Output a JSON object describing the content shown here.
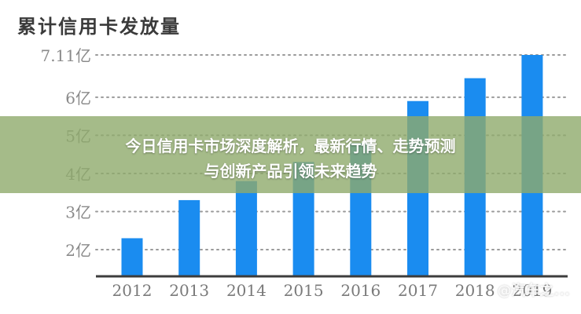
{
  "chart_data": {
    "type": "bar",
    "title": "累计信用卡发放量",
    "categories": [
      "2012",
      "2013",
      "2014",
      "2015",
      "2016",
      "2017",
      "2018",
      "2019"
    ],
    "values": [
      2.3,
      3.3,
      3.8,
      4.3,
      4.8,
      5.9,
      6.5,
      7.11
    ],
    "ytick_labels": [
      "7.11亿",
      "6亿",
      "5亿",
      "4亿",
      "3亿",
      "2亿"
    ],
    "yticks": [
      7.11,
      6,
      5,
      4,
      3,
      2
    ],
    "ylim": [
      1.3,
      7.11
    ],
    "bar_color": "#1a8cf0",
    "grid": "dotted horizontal",
    "xlabel": "",
    "ylabel": ""
  },
  "banner": {
    "line1": "今日信用卡市场深度解析，最新行情、走势预测",
    "line2": "与创新产品引领未来趋势"
  },
  "watermark": "@汽车之..."
}
